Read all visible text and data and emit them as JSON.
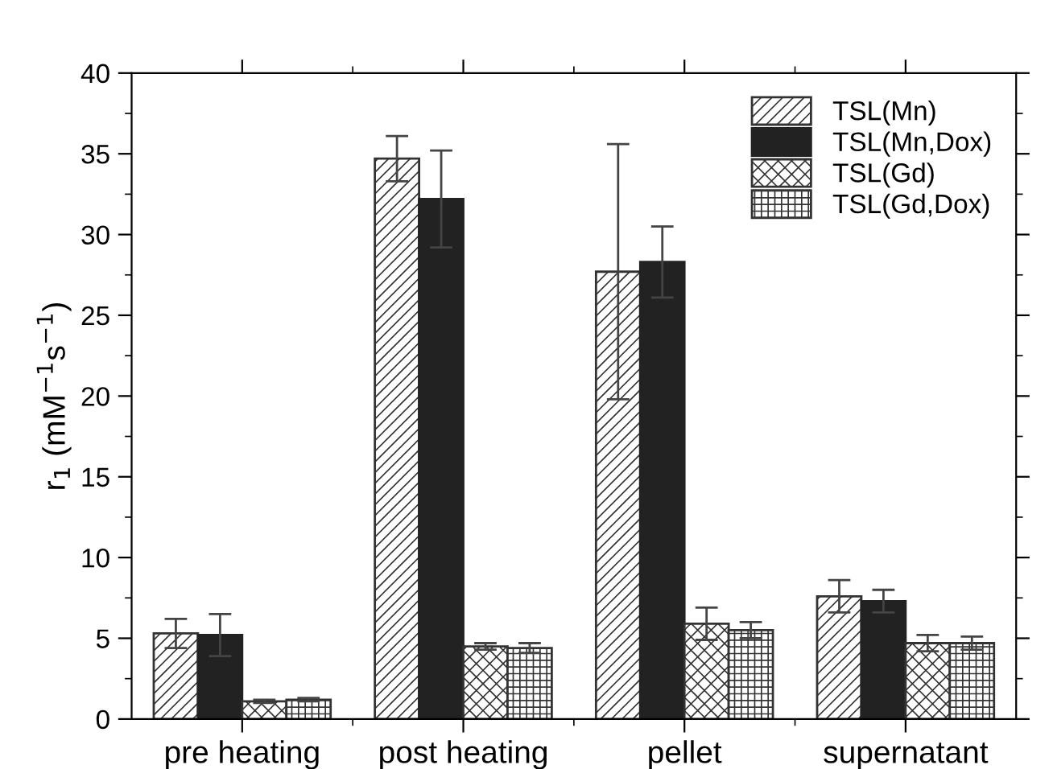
{
  "chart_data": {
    "type": "bar",
    "ylabel": "r$_{1}$ (mM$^{−1}$s$^{−1}$)",
    "categories": [
      "pre heating",
      "post heating",
      "pellet",
      "supernatant"
    ],
    "series": [
      {
        "name": "TSL(Mn)",
        "color": "#333333",
        "values": [
          5.3,
          34.7,
          27.7,
          7.6
        ],
        "errors": [
          0.9,
          1.4,
          7.9,
          1.0
        ]
      },
      {
        "name": "TSL(Mn,Dox)",
        "color": "#222222",
        "values": [
          5.2,
          32.2,
          28.3,
          7.3
        ],
        "errors": [
          1.3,
          3.0,
          2.2,
          0.7
        ]
      },
      {
        "name": "TSL(Gd)",
        "color": "#333333",
        "values": [
          1.1,
          4.5,
          5.9,
          4.7
        ],
        "errors": [
          0.1,
          0.2,
          1.0,
          0.5
        ]
      },
      {
        "name": "TSL(Gd,Dox)",
        "color": "#333333",
        "values": [
          1.2,
          4.4,
          5.5,
          4.7
        ],
        "errors": [
          0.1,
          0.3,
          0.5,
          0.4
        ]
      }
    ],
    "ylim": [
      0,
      40
    ],
    "yticks": [
      0,
      {
        "value": 2.5,
        "label": null
      },
      5,
      {
        "value": 7.5,
        "label": null
      },
      10,
      {
        "value": 12.5,
        "label": null
      },
      15,
      {
        "value": 17.5,
        "label": null
      },
      20,
      {
        "value": 22.5,
        "label": null
      },
      25,
      {
        "value": 27.5,
        "label": null
      },
      30,
      {
        "value": 32.5,
        "label": null
      },
      35,
      {
        "value": 37.5,
        "label": null
      },
      40
    ],
    "grid": false,
    "legend": "top right"
  }
}
